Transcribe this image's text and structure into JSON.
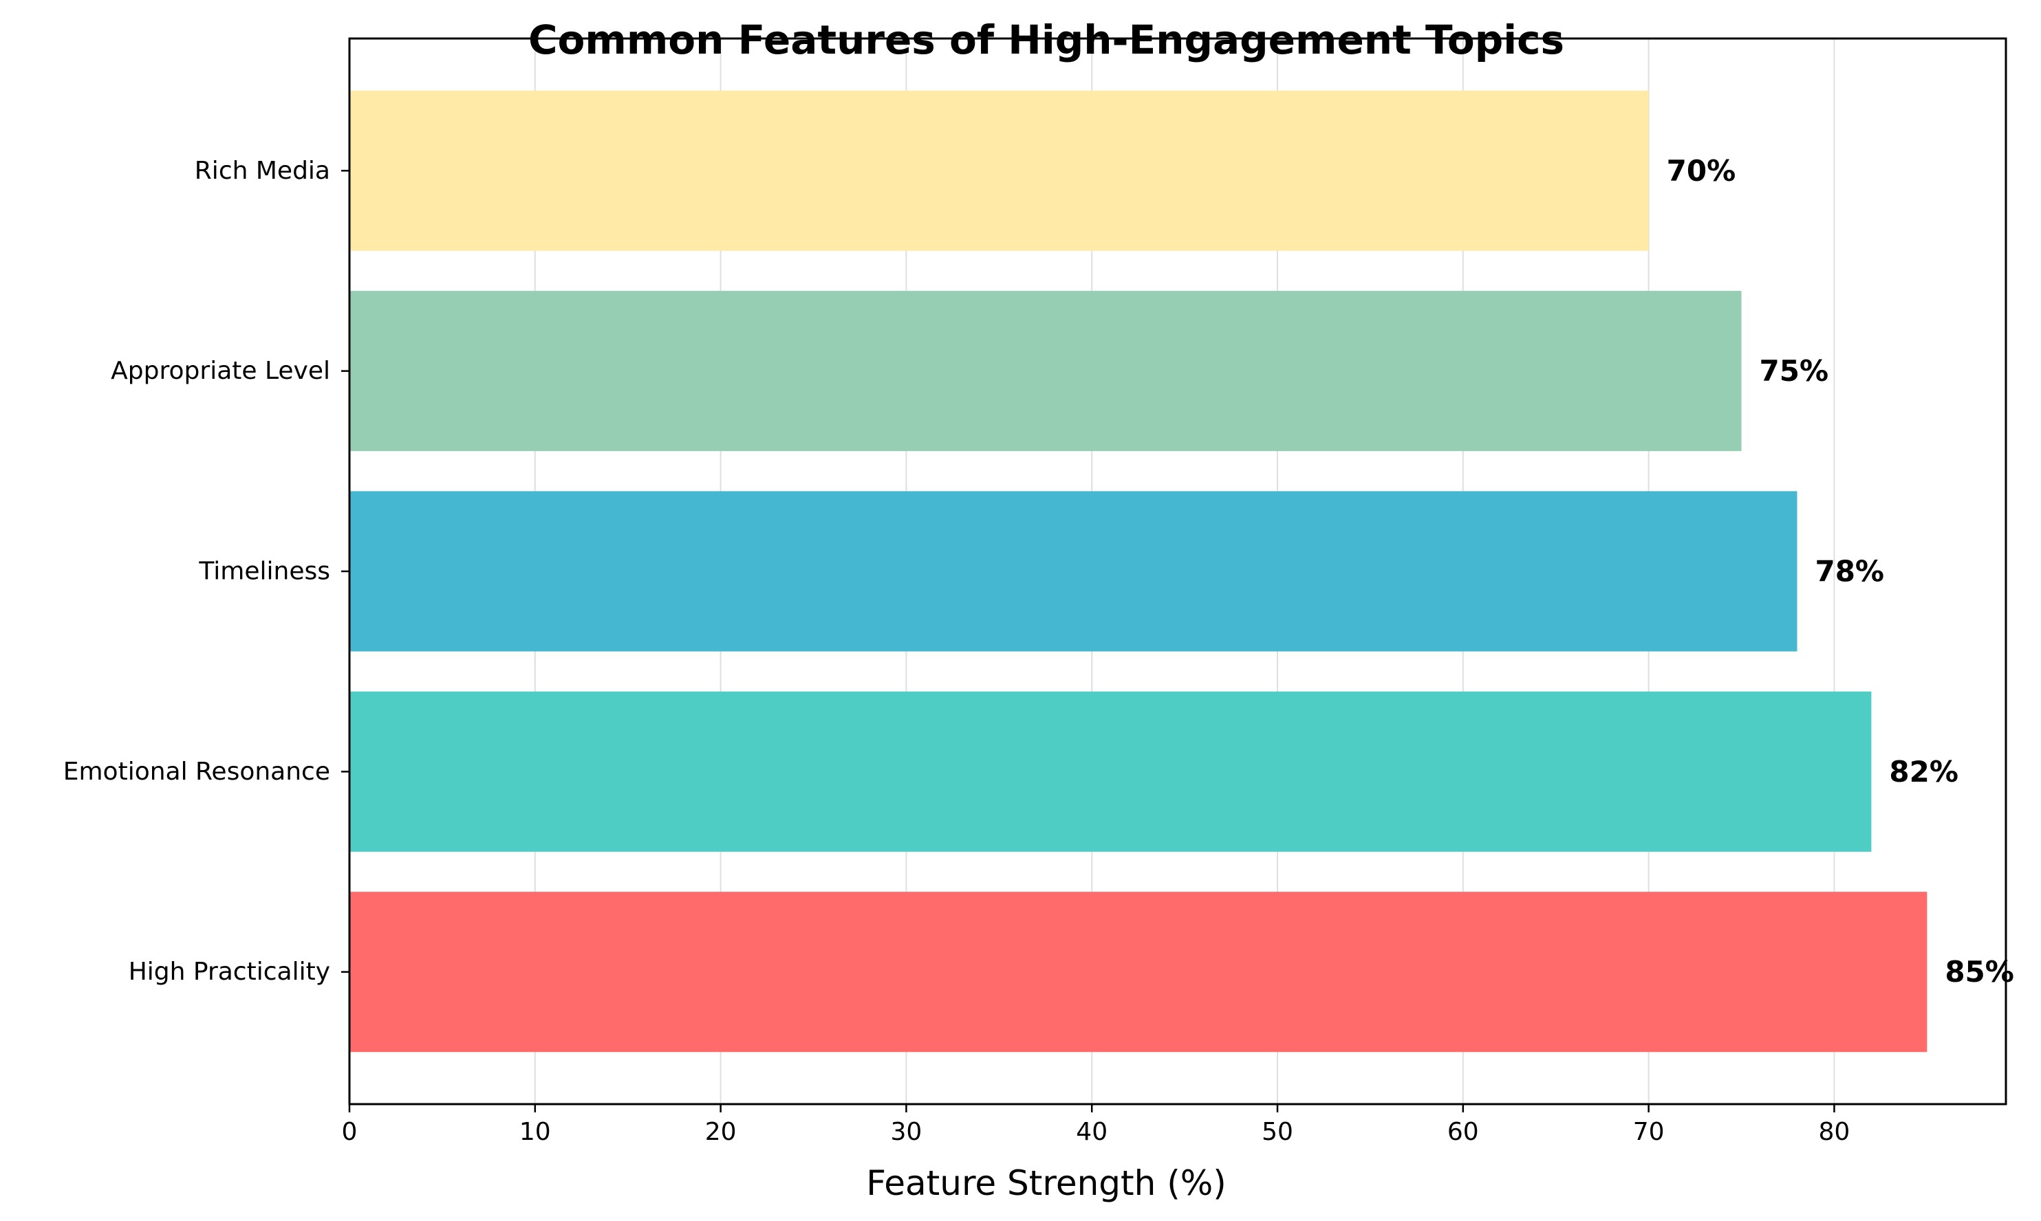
{
  "chart_data": {
    "type": "bar",
    "orientation": "horizontal",
    "title": "Common Features of High-Engagement Topics",
    "xlabel": "Feature Strength (%)",
    "ylabel": "",
    "categories": [
      "High Practicality",
      "Emotional Resonance",
      "Timeliness",
      "Appropriate Level",
      "Rich Media"
    ],
    "values": [
      85,
      82,
      78,
      75,
      70
    ],
    "value_labels": [
      "85%",
      "82%",
      "78%",
      "75%",
      "70%"
    ],
    "colors": [
      "#FF6B6B",
      "#4ECDC4",
      "#45B7D1",
      "#96CEB4",
      "#FFEAA7"
    ],
    "xlim": [
      0,
      89.25
    ],
    "xticks": [
      0,
      10,
      20,
      30,
      40,
      50,
      60,
      70,
      80
    ],
    "xtick_labels": [
      "0",
      "10",
      "20",
      "30",
      "40",
      "50",
      "60",
      "70",
      "80"
    ],
    "grid": "vertical",
    "legend": "none"
  }
}
